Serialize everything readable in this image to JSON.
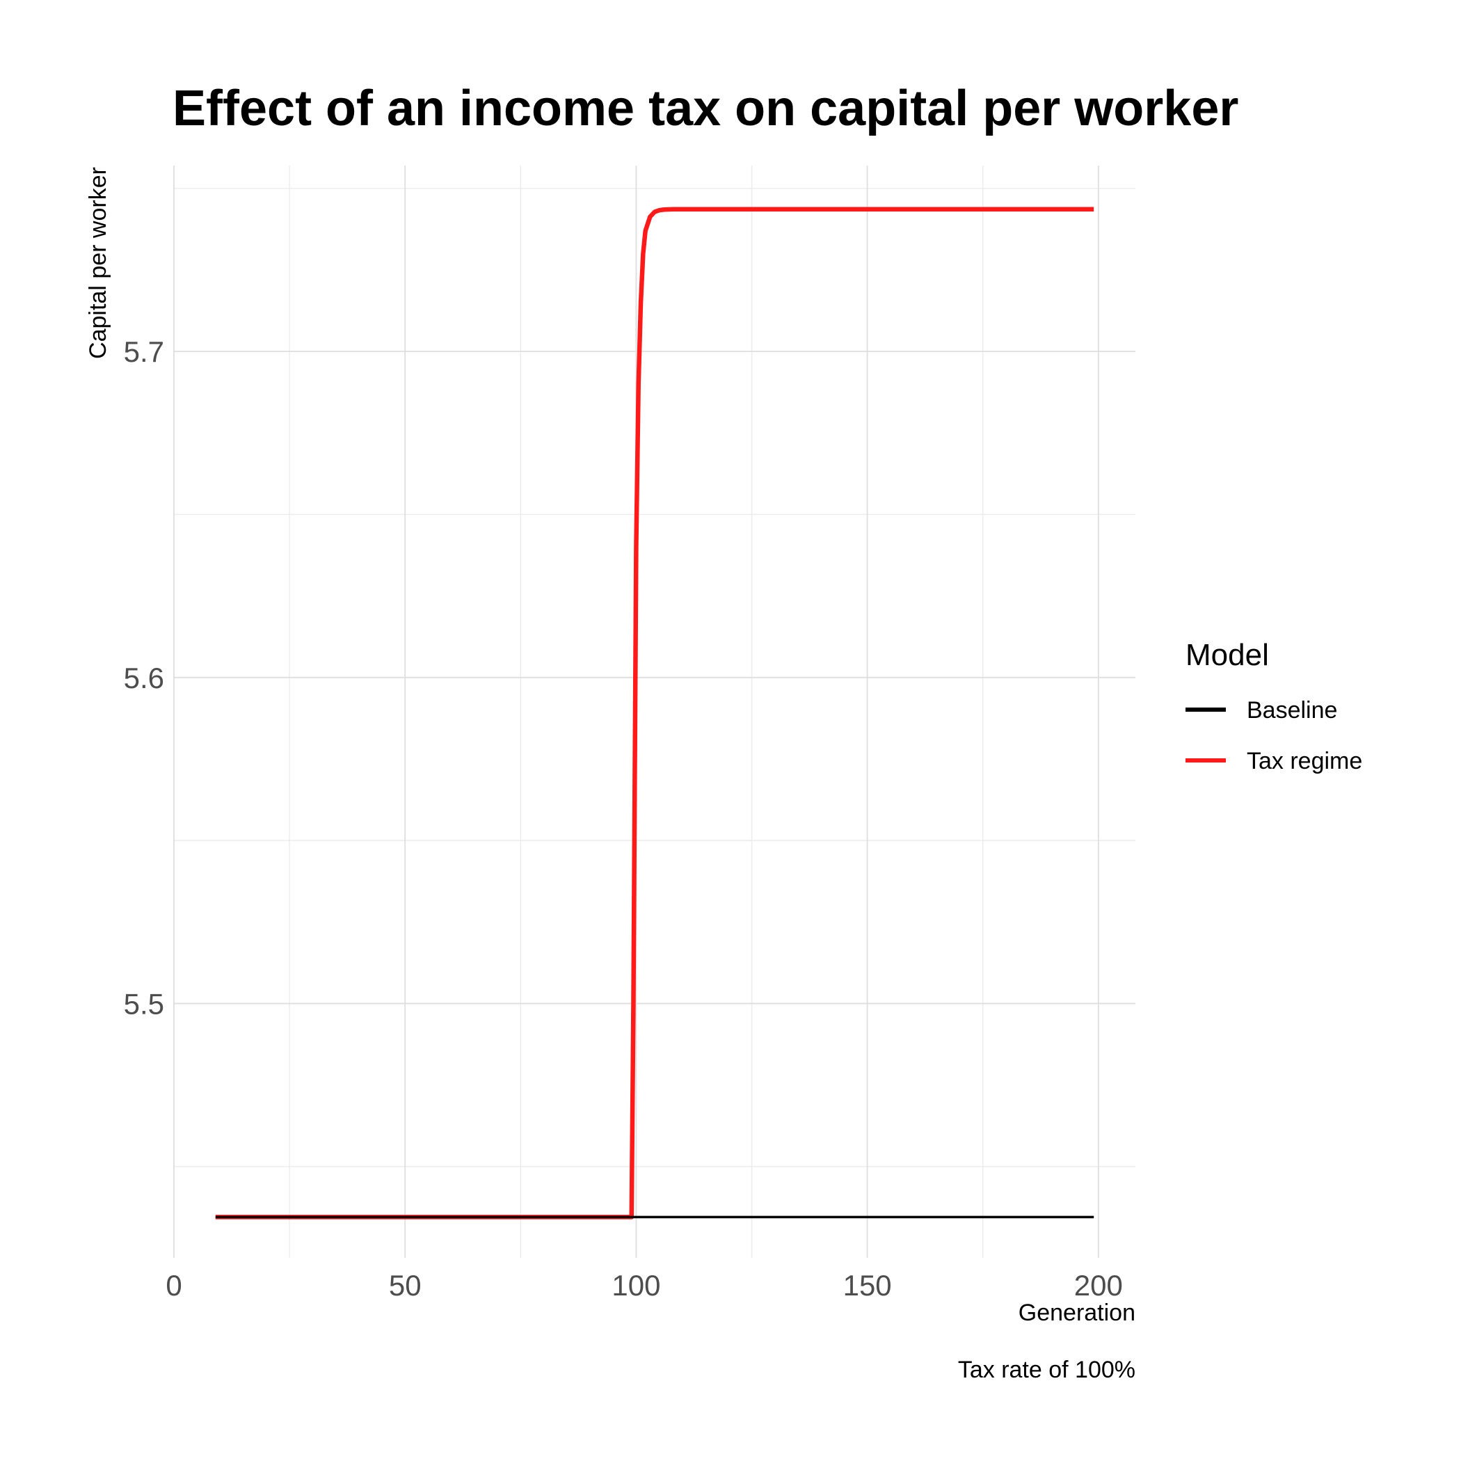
{
  "chart_data": {
    "type": "line",
    "title": "Effect of an income tax on capital per worker",
    "xlabel": "Generation",
    "ylabel": "Capital per worker",
    "caption": "Tax rate of 100%",
    "xlim": [
      0,
      208
    ],
    "ylim": [
      5.422,
      5.757
    ],
    "x_ticks": [
      0,
      50,
      100,
      150,
      200
    ],
    "x_tick_labels": [
      "0",
      "50",
      "100",
      "150",
      "200"
    ],
    "x_minor_ticks": [
      25,
      75,
      125,
      175
    ],
    "y_ticks": [
      5.5,
      5.6,
      5.7
    ],
    "y_tick_labels": [
      "5.5",
      "5.6",
      "5.7"
    ],
    "y_minor_ticks": [
      5.45,
      5.55,
      5.65,
      5.75
    ],
    "grid": true,
    "legend": {
      "title": "Model",
      "position": "right"
    },
    "series": [
      {
        "name": "Baseline",
        "color": "#000000",
        "x": [
          9,
          199
        ],
        "y": [
          5.4345,
          5.4345
        ]
      },
      {
        "name": "Tax regime",
        "color": "#ff1a1a",
        "x": [
          9,
          99,
          99.4,
          100,
          100.5,
          101,
          101.5,
          102,
          103,
          104,
          105,
          106,
          108,
          120,
          150,
          199
        ],
        "y": [
          5.4345,
          5.4345,
          5.5,
          5.64,
          5.69,
          5.715,
          5.73,
          5.737,
          5.7413,
          5.7428,
          5.7433,
          5.7435,
          5.7436,
          5.7436,
          5.7436,
          5.7436
        ]
      }
    ]
  }
}
